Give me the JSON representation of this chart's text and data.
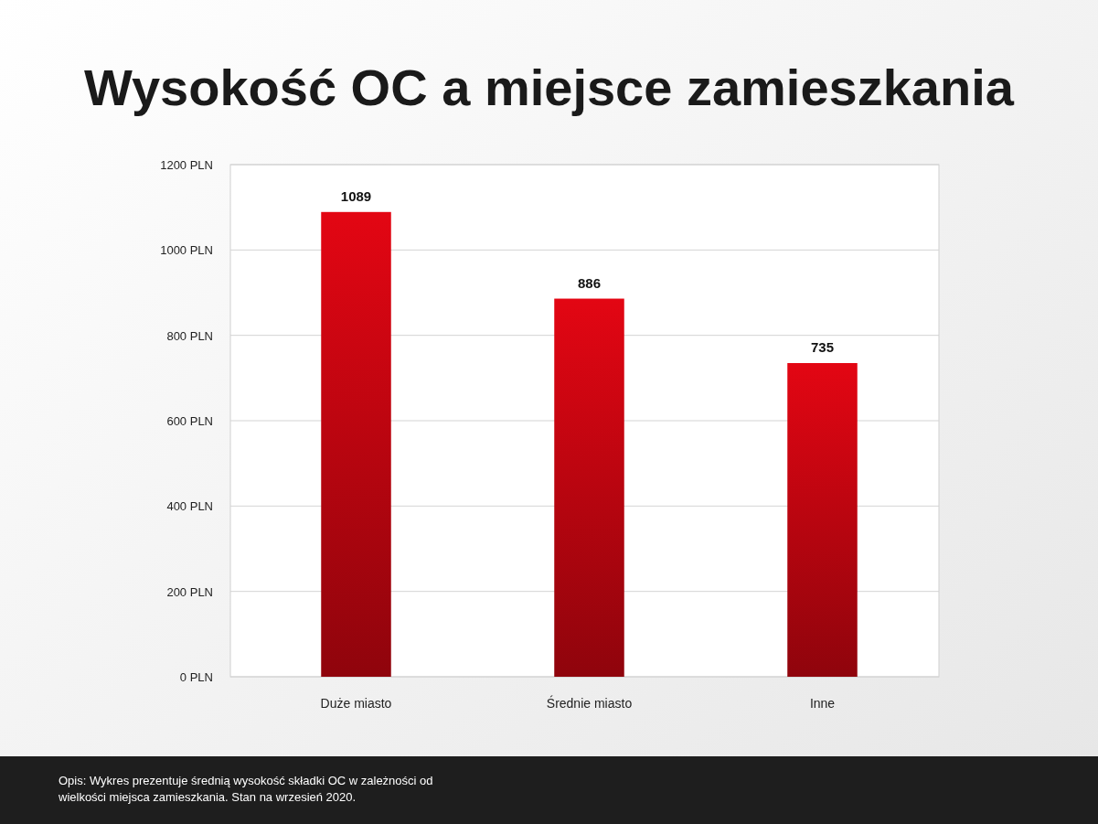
{
  "chart_data": {
    "type": "bar",
    "title": "Wysokość OC a miejsce zamieszkania",
    "categories": [
      "Duże miasto",
      "Średnie miasto",
      "Inne"
    ],
    "values": [
      1089,
      886,
      735
    ],
    "color": "#e30613",
    "ylim": [
      0,
      1200
    ],
    "yticks": [
      {
        "value": 0,
        "label": "0 PLN"
      },
      {
        "value": 200,
        "label": "200 PLN"
      },
      {
        "value": 400,
        "label": "400 PLN"
      },
      {
        "value": 600,
        "label": "600 PLN"
      },
      {
        "value": 800,
        "label": "800 PLN"
      },
      {
        "value": 1000,
        "label": "1000 PLN"
      },
      {
        "value": 1200,
        "label": "1200 PLN"
      }
    ],
    "grid": "y",
    "data_labels": true,
    "annotations": [
      "Opis: Wykres prezentuje średnią wysokość składki OC w zależności od wielkości miejsca zamieszkania. Stan na wrzesień 2020."
    ]
  }
}
